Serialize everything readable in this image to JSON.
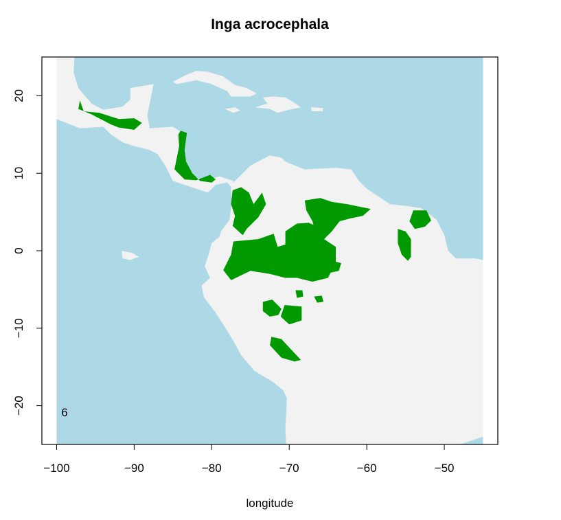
{
  "chart_data": {
    "type": "map",
    "title": "Inga acrocephala",
    "xlabel": "longitude",
    "ylabel": "",
    "xlim": [
      -101.9,
      -43.1
    ],
    "ylim": [
      -25,
      25
    ],
    "xticks": [
      -100,
      -90,
      -80,
      -70,
      -60,
      -50
    ],
    "xtick_labels": [
      "−100",
      "−90",
      "−80",
      "−70",
      "−60",
      "−50"
    ],
    "yticks": [
      -20,
      -10,
      0,
      10,
      20
    ],
    "ytick_labels": [
      "−20",
      "−10",
      "0",
      "10",
      "20"
    ],
    "raster_extent_lon": [
      -100,
      -45
    ],
    "corner_label": "6",
    "colors": {
      "ocean": "#add8e6",
      "land": "#f2f2f2",
      "presence": "#009900",
      "frame": "#000000"
    },
    "land_polygons": [
      {
        "name": "north-america-central-america",
        "points": [
          [
            -100,
            20
          ],
          [
            -100,
            17
          ],
          [
            -97,
            15.8
          ],
          [
            -94,
            16
          ],
          [
            -93,
            15
          ],
          [
            -91.5,
            14
          ],
          [
            -90,
            13.5
          ],
          [
            -88,
            13
          ],
          [
            -87,
            12.5
          ],
          [
            -86,
            11
          ],
          [
            -85.5,
            10
          ],
          [
            -85,
            9
          ],
          [
            -83.5,
            8.5
          ],
          [
            -82,
            8
          ],
          [
            -80.5,
            7.5
          ],
          [
            -79.5,
            8.5
          ],
          [
            -78,
            8.8
          ],
          [
            -77.3,
            8
          ],
          [
            -77.2,
            9
          ],
          [
            -79,
            9.6
          ],
          [
            -80,
            9.3
          ],
          [
            -81,
            9
          ],
          [
            -82.5,
            9.7
          ],
          [
            -83.5,
            11
          ],
          [
            -83.8,
            13
          ],
          [
            -83.5,
            15
          ],
          [
            -85,
            16
          ],
          [
            -88,
            15.8
          ],
          [
            -88.3,
            17.5
          ],
          [
            -87.5,
            21.5
          ],
          [
            -90.5,
            21
          ],
          [
            -90.5,
            19.5
          ],
          [
            -91.5,
            18.6
          ],
          [
            -94,
            18.2
          ],
          [
            -95.5,
            19
          ],
          [
            -97.2,
            21
          ],
          [
            -97.8,
            23
          ],
          [
            -97.7,
            25
          ],
          [
            -100,
            25
          ]
        ]
      },
      {
        "name": "south-america",
        "points": [
          [
            -77.5,
            8.5
          ],
          [
            -76,
            10
          ],
          [
            -75,
            11
          ],
          [
            -72.5,
            12.3
          ],
          [
            -71,
            12
          ],
          [
            -70.5,
            11.5
          ],
          [
            -68,
            10.5
          ],
          [
            -66,
            10.6
          ],
          [
            -64,
            10.7
          ],
          [
            -62,
            10.5
          ],
          [
            -61,
            9
          ],
          [
            -60,
            8
          ],
          [
            -58.5,
            7
          ],
          [
            -57,
            6
          ],
          [
            -55,
            5.8
          ],
          [
            -53,
            5.5
          ],
          [
            -51,
            4
          ],
          [
            -50,
            2
          ],
          [
            -49.5,
            0
          ],
          [
            -48.5,
            -1
          ],
          [
            -46,
            -1
          ],
          [
            -45,
            -1.2
          ],
          [
            -45,
            -24
          ],
          [
            -48,
            -25
          ],
          [
            -70.4,
            -25
          ],
          [
            -70.5,
            -23
          ],
          [
            -70.3,
            -19
          ],
          [
            -70.8,
            -18
          ],
          [
            -72,
            -17
          ],
          [
            -74.5,
            -15.5
          ],
          [
            -76.2,
            -13.5
          ],
          [
            -77,
            -12
          ],
          [
            -78.2,
            -10
          ],
          [
            -79.5,
            -8
          ],
          [
            -81,
            -6
          ],
          [
            -81.3,
            -4.5
          ],
          [
            -80.2,
            -3.5
          ],
          [
            -80.9,
            -2
          ],
          [
            -80.4,
            -0.5
          ],
          [
            -80,
            1
          ],
          [
            -79,
            1.8
          ],
          [
            -78.8,
            2.5
          ],
          [
            -77.7,
            4
          ],
          [
            -77.4,
            6.5
          ],
          [
            -77.5,
            7.5
          ]
        ]
      },
      {
        "name": "cuba",
        "points": [
          [
            -85,
            21.8
          ],
          [
            -83.5,
            22.6
          ],
          [
            -82,
            23.2
          ],
          [
            -80.5,
            23.1
          ],
          [
            -78.5,
            22.5
          ],
          [
            -77,
            21.4
          ],
          [
            -75.5,
            21
          ],
          [
            -74.2,
            20.3
          ],
          [
            -75,
            19.9
          ],
          [
            -77.5,
            19.9
          ],
          [
            -78,
            20.6
          ],
          [
            -80,
            21.5
          ],
          [
            -82,
            22
          ],
          [
            -84.5,
            21.5
          ]
        ]
      },
      {
        "name": "hispaniola",
        "points": [
          [
            -74.4,
            18.5
          ],
          [
            -72.5,
            18.3
          ],
          [
            -71.5,
            17.8
          ],
          [
            -70,
            18.2
          ],
          [
            -68.5,
            18.5
          ],
          [
            -69.5,
            19.2
          ],
          [
            -70.5,
            19.8
          ],
          [
            -72,
            19.9
          ],
          [
            -73.4,
            19.8
          ],
          [
            -72.8,
            19
          ]
        ]
      },
      {
        "name": "jamaica",
        "points": [
          [
            -78.3,
            18.3
          ],
          [
            -77,
            18.5
          ],
          [
            -76.3,
            18.1
          ],
          [
            -77.2,
            17.8
          ]
        ]
      },
      {
        "name": "puerto-rico",
        "points": [
          [
            -67.2,
            18.5
          ],
          [
            -65.6,
            18.4
          ],
          [
            -65.7,
            18
          ],
          [
            -67.1,
            18
          ]
        ]
      },
      {
        "name": "galapagos",
        "points": [
          [
            -91.6,
            0
          ],
          [
            -90.2,
            -0.3
          ],
          [
            -89.4,
            -0.8
          ],
          [
            -90.5,
            -1.2
          ],
          [
            -91.5,
            -1
          ]
        ]
      }
    ],
    "presence_polygons": [
      {
        "name": "mexico-guatemala",
        "points": [
          [
            -97,
            19.4
          ],
          [
            -96.5,
            18
          ],
          [
            -94.5,
            17.8
          ],
          [
            -92,
            17
          ],
          [
            -90,
            17.1
          ],
          [
            -89,
            16.5
          ],
          [
            -90,
            15.6
          ],
          [
            -92,
            15.9
          ],
          [
            -93,
            16.3
          ],
          [
            -95.5,
            17.6
          ],
          [
            -97.2,
            18.3
          ]
        ]
      },
      {
        "name": "honduras-nicaragua-costa-rica-panama",
        "points": [
          [
            -84,
            15.5
          ],
          [
            -83.2,
            15.2
          ],
          [
            -83.5,
            13
          ],
          [
            -83.3,
            11.5
          ],
          [
            -82.5,
            10
          ],
          [
            -81.5,
            9
          ],
          [
            -80,
            8.8
          ],
          [
            -79.5,
            9.2
          ],
          [
            -80.2,
            9.8
          ],
          [
            -82,
            9.1
          ],
          [
            -83.5,
            9.2
          ],
          [
            -84.8,
            10.5
          ],
          [
            -84.5,
            12
          ],
          [
            -84.2,
            13.5
          ],
          [
            -84.3,
            15
          ]
        ]
      },
      {
        "name": "colombia-choco-andes",
        "points": [
          [
            -77.3,
            7.8
          ],
          [
            -76.2,
            8.2
          ],
          [
            -75.2,
            7.5
          ],
          [
            -74.6,
            6
          ],
          [
            -73.5,
            7.5
          ],
          [
            -73,
            6
          ],
          [
            -74,
            4.3
          ],
          [
            -75.5,
            2.8
          ],
          [
            -76,
            2
          ],
          [
            -77.3,
            3.2
          ],
          [
            -77,
            4.5
          ],
          [
            -77.5,
            6
          ]
        ]
      },
      {
        "name": "western-amazon",
        "points": [
          [
            -77.2,
            1.2
          ],
          [
            -74,
            1.5
          ],
          [
            -72,
            2.2
          ],
          [
            -71.5,
            0.5
          ],
          [
            -70.5,
            0.8
          ],
          [
            -70.5,
            2.5
          ],
          [
            -69,
            3.5
          ],
          [
            -67.5,
            3.6
          ],
          [
            -66,
            3
          ],
          [
            -65.5,
            1.5
          ],
          [
            -64,
            0.5
          ],
          [
            -64,
            -1.5
          ],
          [
            -65,
            -3.5
          ],
          [
            -67,
            -4
          ],
          [
            -69,
            -3.5
          ],
          [
            -70.5,
            -3.5
          ],
          [
            -72.5,
            -3
          ],
          [
            -75,
            -2.6
          ],
          [
            -77.5,
            -3.8
          ],
          [
            -78.5,
            -2.5
          ],
          [
            -77.5,
            -0.5
          ]
        ]
      },
      {
        "name": "venezuela-guyana-highlands",
        "points": [
          [
            -68,
            6.5
          ],
          [
            -66,
            6.8
          ],
          [
            -64.5,
            6.3
          ],
          [
            -62.5,
            6
          ],
          [
            -59.5,
            5.4
          ],
          [
            -60.5,
            4.5
          ],
          [
            -62,
            4.2
          ],
          [
            -63.5,
            3.8
          ],
          [
            -64.5,
            2.5
          ],
          [
            -66,
            1
          ],
          [
            -66.5,
            2
          ],
          [
            -67,
            3.8
          ],
          [
            -67.8,
            5.2
          ]
        ]
      },
      {
        "name": "suriname-french-guiana",
        "points": [
          [
            -54,
            5.2
          ],
          [
            -52.3,
            5.2
          ],
          [
            -51.7,
            3.9
          ],
          [
            -52.5,
            3.1
          ],
          [
            -53.8,
            2.8
          ],
          [
            -54.5,
            3.8
          ]
        ]
      },
      {
        "name": "amapa-brazil",
        "points": [
          [
            -56,
            2.8
          ],
          [
            -55,
            2.5
          ],
          [
            -54.3,
            1.5
          ],
          [
            -54.3,
            -0.8
          ],
          [
            -54.7,
            -1.3
          ],
          [
            -55.5,
            -0.5
          ],
          [
            -56,
            1
          ]
        ]
      },
      {
        "name": "rio-negro-east",
        "points": [
          [
            -65,
            -1.2
          ],
          [
            -63.3,
            -1.6
          ],
          [
            -63.6,
            -2.6
          ],
          [
            -65,
            -2.9
          ]
        ]
      },
      {
        "name": "peru-central",
        "points": [
          [
            -73.4,
            -6.6
          ],
          [
            -72.2,
            -6.3
          ],
          [
            -71,
            -7.5
          ],
          [
            -71.4,
            -8.3
          ],
          [
            -72.5,
            -8.5
          ],
          [
            -73.4,
            -7.8
          ]
        ]
      },
      {
        "name": "acre-rondonia",
        "points": [
          [
            -70.6,
            -7
          ],
          [
            -68.4,
            -7.2
          ],
          [
            -68.4,
            -9
          ],
          [
            -70,
            -9.5
          ],
          [
            -71.1,
            -8.5
          ]
        ]
      },
      {
        "name": "ucayali-spot",
        "points": [
          [
            -69.2,
            -5.1
          ],
          [
            -68.3,
            -5.1
          ],
          [
            -68.2,
            -5.9
          ],
          [
            -69,
            -6.1
          ]
        ]
      },
      {
        "name": "madeira-spot",
        "points": [
          [
            -66.8,
            -5.9
          ],
          [
            -65.8,
            -5.8
          ],
          [
            -65.6,
            -6.6
          ],
          [
            -66.4,
            -6.7
          ]
        ]
      },
      {
        "name": "bolivia-madidi",
        "points": [
          [
            -72.3,
            -11.1
          ],
          [
            -71,
            -11.4
          ],
          [
            -69.9,
            -12.6
          ],
          [
            -68.5,
            -14.1
          ],
          [
            -69.3,
            -14.3
          ],
          [
            -71,
            -13.8
          ],
          [
            -72.5,
            -12.2
          ]
        ]
      }
    ]
  }
}
